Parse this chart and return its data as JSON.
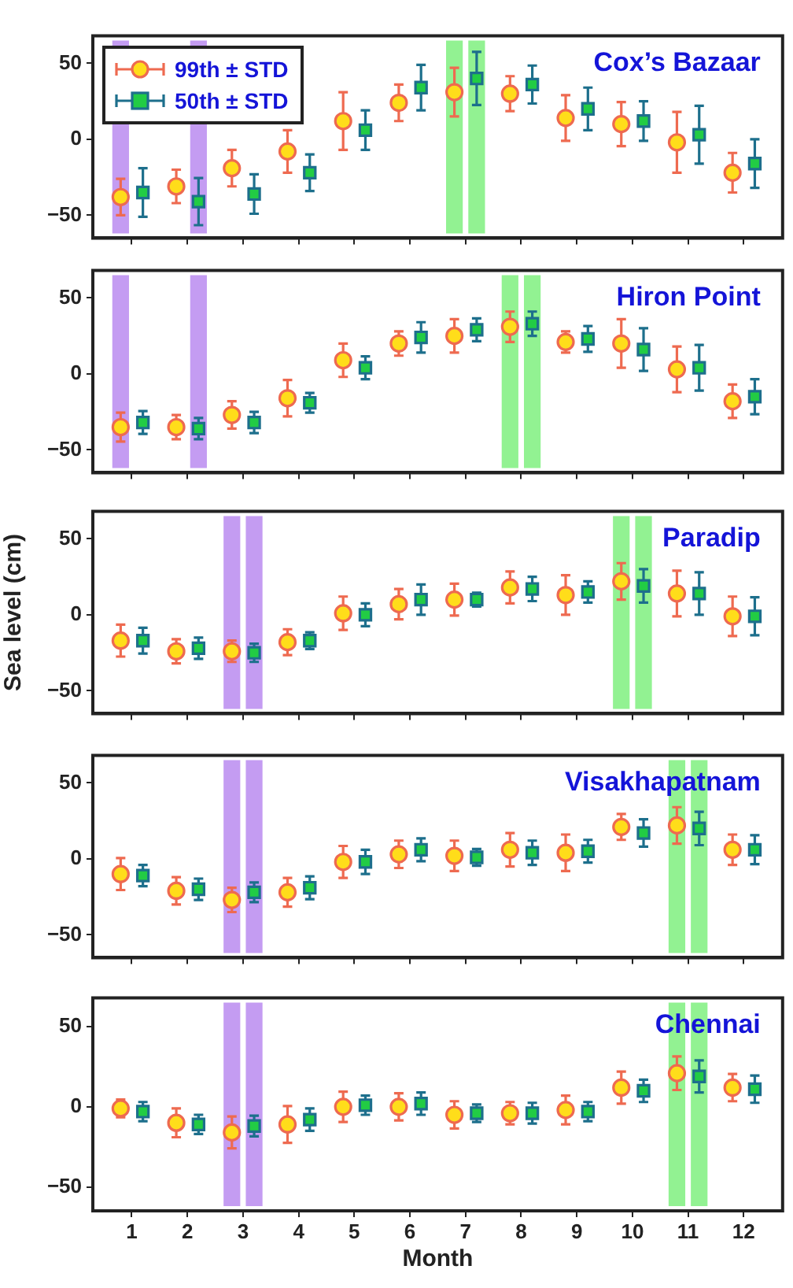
{
  "chart_data": [
    {
      "type": "scatter",
      "annotations": [
        "Cox’s Bazaar"
      ],
      "xlim": [
        0.3,
        12.7
      ],
      "xticks": [
        1,
        2,
        3,
        4,
        5,
        6,
        7,
        8,
        9,
        10,
        11,
        12
      ],
      "ylim": [
        -65,
        68
      ],
      "yticks": [
        -50,
        0,
        50
      ],
      "tick_labels": "y",
      "legend": "top left",
      "grid": false,
      "bands": [
        {
          "axis": "x",
          "from": 0.65,
          "to": 0.95,
          "color": "#c49cf2"
        },
        {
          "axis": "x",
          "from": 2.05,
          "to": 2.35,
          "color": "#c49cf2"
        },
        {
          "axis": "x",
          "from": 6.65,
          "to": 6.95,
          "color": "#92f292"
        },
        {
          "axis": "x",
          "from": 7.05,
          "to": 7.35,
          "color": "#92f292"
        }
      ],
      "series": [
        {
          "name": "99th ± STD",
          "marker": "circle",
          "color": "#ffdd1a",
          "x": [
            0.8,
            1.8,
            2.8,
            3.8,
            4.8,
            5.8,
            6.8,
            7.8,
            8.8,
            9.8,
            10.8,
            11.8
          ],
          "values": [
            -38,
            -31,
            -19,
            -8,
            12,
            24,
            31,
            30,
            14,
            10,
            -2,
            -22
          ],
          "errors": [
            12,
            11,
            12,
            14,
            19,
            12,
            16,
            11.5,
            15,
            14.5,
            20,
            13
          ]
        },
        {
          "name": "50th ± STD",
          "marker": "square",
          "color": "#22cc44",
          "x": [
            1.2,
            2.2,
            3.2,
            4.2,
            5.2,
            6.2,
            7.2,
            8.2,
            9.2,
            10.2,
            11.2,
            12.2
          ],
          "values": [
            -35,
            -41,
            -36,
            -22,
            6,
            34,
            40,
            36,
            20,
            12,
            3,
            -16
          ],
          "errors": [
            16,
            15.5,
            13,
            12,
            13,
            15,
            17.5,
            12.5,
            14,
            13,
            19,
            16
          ]
        }
      ]
    },
    {
      "type": "scatter",
      "annotations": [
        "Hiron Point"
      ],
      "xlim": [
        0.3,
        12.7
      ],
      "xticks": [
        1,
        2,
        3,
        4,
        5,
        6,
        7,
        8,
        9,
        10,
        11,
        12
      ],
      "ylim": [
        -65,
        68
      ],
      "yticks": [
        -50,
        0,
        50
      ],
      "tick_labels": "y",
      "grid": false,
      "bands": [
        {
          "axis": "x",
          "from": 0.65,
          "to": 0.95,
          "color": "#c49cf2"
        },
        {
          "axis": "x",
          "from": 2.05,
          "to": 2.35,
          "color": "#c49cf2"
        },
        {
          "axis": "x",
          "from": 7.65,
          "to": 7.95,
          "color": "#92f292"
        },
        {
          "axis": "x",
          "from": 8.05,
          "to": 8.35,
          "color": "#92f292"
        }
      ],
      "series": [
        {
          "marker": "circle",
          "color": "#ffdd1a",
          "x": [
            0.8,
            1.8,
            2.8,
            3.8,
            4.8,
            5.8,
            6.8,
            7.8,
            8.8,
            9.8,
            10.8,
            11.8
          ],
          "values": [
            -35,
            -35,
            -27,
            -16,
            9,
            20,
            25,
            31,
            21,
            20,
            3,
            -18
          ],
          "errors": [
            9.5,
            8,
            9,
            12,
            11,
            8,
            11,
            10,
            7,
            16,
            15,
            11
          ]
        },
        {
          "marker": "square",
          "color": "#22cc44",
          "x": [
            1.2,
            2.2,
            3.2,
            4.2,
            5.2,
            6.2,
            7.2,
            8.2,
            9.2,
            10.2,
            11.2,
            12.2
          ],
          "values": [
            -32,
            -36,
            -32,
            -19,
            4,
            24,
            29,
            33,
            23,
            16,
            4,
            -15
          ],
          "errors": [
            7.5,
            7,
            7,
            6.5,
            7.5,
            10,
            7.5,
            8,
            8.5,
            14,
            15,
            11.5
          ]
        }
      ]
    },
    {
      "type": "scatter",
      "annotations": [
        "Paradip"
      ],
      "ylabel": "Sea level (cm)",
      "xlim": [
        0.3,
        12.7
      ],
      "xticks": [
        1,
        2,
        3,
        4,
        5,
        6,
        7,
        8,
        9,
        10,
        11,
        12
      ],
      "ylim": [
        -65,
        68
      ],
      "yticks": [
        -50,
        0,
        50
      ],
      "tick_labels": "y",
      "grid": false,
      "bands": [
        {
          "axis": "x",
          "from": 2.65,
          "to": 2.95,
          "color": "#c49cf2"
        },
        {
          "axis": "x",
          "from": 3.05,
          "to": 3.35,
          "color": "#c49cf2"
        },
        {
          "axis": "x",
          "from": 9.65,
          "to": 9.95,
          "color": "#92f292"
        },
        {
          "axis": "x",
          "from": 10.05,
          "to": 10.35,
          "color": "#92f292"
        }
      ],
      "series": [
        {
          "marker": "circle",
          "color": "#ffdd1a",
          "x": [
            0.8,
            1.8,
            2.8,
            3.8,
            4.8,
            5.8,
            6.8,
            7.8,
            8.8,
            9.8,
            10.8,
            11.8
          ],
          "values": [
            -17,
            -24,
            -24,
            -18,
            1,
            7,
            10,
            18,
            13,
            22,
            14,
            -1
          ],
          "errors": [
            10.5,
            8,
            7,
            8.5,
            11,
            10,
            10.5,
            10.5,
            13,
            12,
            15,
            13
          ]
        },
        {
          "marker": "square",
          "color": "#22cc44",
          "x": [
            1.2,
            2.2,
            3.2,
            4.2,
            5.2,
            6.2,
            7.2,
            8.2,
            9.2,
            10.2,
            11.2,
            12.2
          ],
          "values": [
            -17,
            -22,
            -25,
            -17,
            0,
            10,
            10,
            17,
            15,
            19,
            14,
            -1
          ],
          "errors": [
            8.5,
            7,
            6,
            5.5,
            7.5,
            10,
            4.5,
            8,
            7,
            11,
            14,
            12.5
          ]
        }
      ]
    },
    {
      "type": "scatter",
      "annotations": [
        "Visakhapatnam"
      ],
      "xlim": [
        0.3,
        12.7
      ],
      "xticks": [
        1,
        2,
        3,
        4,
        5,
        6,
        7,
        8,
        9,
        10,
        11,
        12
      ],
      "ylim": [
        -65,
        68
      ],
      "yticks": [
        -50,
        0,
        50
      ],
      "tick_labels": "y",
      "grid": false,
      "bands": [
        {
          "axis": "x",
          "from": 2.65,
          "to": 2.95,
          "color": "#c49cf2"
        },
        {
          "axis": "x",
          "from": 3.05,
          "to": 3.35,
          "color": "#c49cf2"
        },
        {
          "axis": "x",
          "from": 10.65,
          "to": 10.95,
          "color": "#92f292"
        },
        {
          "axis": "x",
          "from": 11.05,
          "to": 11.35,
          "color": "#92f292"
        }
      ],
      "series": [
        {
          "marker": "circle",
          "color": "#ffdd1a",
          "x": [
            0.8,
            1.8,
            2.8,
            3.8,
            4.8,
            5.8,
            6.8,
            7.8,
            8.8,
            9.8,
            10.8,
            11.8
          ],
          "values": [
            -10,
            -21,
            -27,
            -22,
            -2,
            3,
            2,
            6,
            4,
            21,
            22,
            6
          ],
          "errors": [
            10.5,
            9,
            8,
            9.5,
            10.5,
            9,
            10,
            11,
            12,
            8.5,
            12,
            10
          ]
        },
        {
          "marker": "square",
          "color": "#22cc44",
          "x": [
            1.2,
            2.2,
            3.2,
            4.2,
            5.2,
            6.2,
            7.2,
            8.2,
            9.2,
            10.2,
            11.2,
            12.2
          ],
          "values": [
            -11,
            -20,
            -22,
            -19,
            -2,
            6,
            1,
            4,
            5,
            17,
            20,
            6
          ],
          "errors": [
            7,
            7,
            6.5,
            7.5,
            8,
            7.5,
            5.5,
            8,
            7.5,
            9,
            11,
            9.5
          ]
        }
      ]
    },
    {
      "type": "scatter",
      "annotations": [
        "Chennai"
      ],
      "xlabel": "Month",
      "xlim": [
        0.3,
        12.7
      ],
      "xticks": [
        1,
        2,
        3,
        4,
        5,
        6,
        7,
        8,
        9,
        10,
        11,
        12
      ],
      "ylim": [
        -65,
        68
      ],
      "yticks": [
        -50,
        0,
        50
      ],
      "grid": false,
      "bands": [
        {
          "axis": "x",
          "from": 2.65,
          "to": 2.95,
          "color": "#c49cf2"
        },
        {
          "axis": "x",
          "from": 3.05,
          "to": 3.35,
          "color": "#c49cf2"
        },
        {
          "axis": "x",
          "from": 10.65,
          "to": 10.95,
          "color": "#92f292"
        },
        {
          "axis": "x",
          "from": 11.05,
          "to": 11.35,
          "color": "#92f292"
        }
      ],
      "series": [
        {
          "marker": "circle",
          "color": "#ffdd1a",
          "x": [
            0.8,
            1.8,
            2.8,
            3.8,
            4.8,
            5.8,
            6.8,
            7.8,
            8.8,
            9.8,
            10.8,
            11.8
          ],
          "values": [
            -1,
            -10,
            -16,
            -11,
            0,
            0,
            -5,
            -4,
            -2,
            12,
            21,
            12
          ],
          "errors": [
            5.5,
            9,
            10,
            11.5,
            9.5,
            8.5,
            8.5,
            7,
            9,
            10,
            10.5,
            8.5
          ]
        },
        {
          "marker": "square",
          "color": "#22cc44",
          "x": [
            1.2,
            2.2,
            3.2,
            4.2,
            5.2,
            6.2,
            7.2,
            8.2,
            9.2,
            10.2,
            11.2,
            12.2
          ],
          "values": [
            -3,
            -11,
            -12,
            -8,
            1,
            2,
            -4,
            -4,
            -3,
            10,
            19,
            11
          ],
          "errors": [
            6,
            6,
            6.5,
            7,
            6,
            7,
            5.5,
            6.5,
            6,
            7,
            10,
            8.5
          ]
        }
      ]
    }
  ]
}
